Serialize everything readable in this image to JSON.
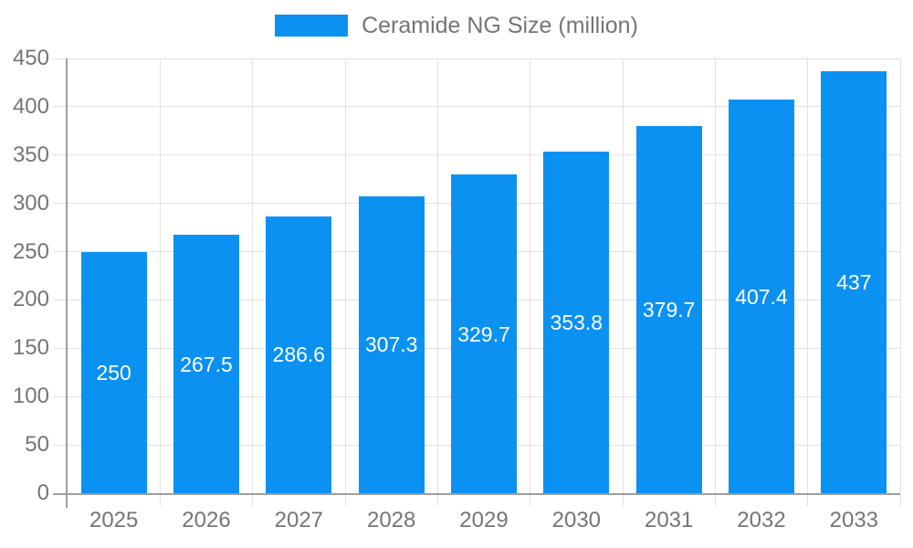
{
  "legend": {
    "label": "Ceramide NG Size (million)"
  },
  "colors": {
    "bar": "#0a91f2",
    "bar_label": "#ffffff",
    "axis_text": "#757575",
    "legend_text": "#757575",
    "gridline": "#e2e2e2",
    "axis_line": "#9e9e9e"
  },
  "chart_data": {
    "type": "bar",
    "title": "Ceramide NG Size (million)",
    "categories": [
      "2025",
      "2026",
      "2027",
      "2028",
      "2029",
      "2030",
      "2031",
      "2032",
      "2033"
    ],
    "values": [
      250,
      267.5,
      286.6,
      307.3,
      329.7,
      353.8,
      379.7,
      407.4,
      437
    ],
    "series": [
      {
        "name": "Ceramide NG Size (million)",
        "values": [
          250,
          267.5,
          286.6,
          307.3,
          329.7,
          353.8,
          379.7,
          407.4,
          437
        ]
      }
    ],
    "xlabel": "",
    "ylabel": "",
    "ylim": [
      0,
      450
    ],
    "ytick_step": 50,
    "yticks": [
      0,
      50,
      100,
      150,
      200,
      250,
      300,
      350,
      400,
      450
    ],
    "grid": true,
    "legend_position": "top",
    "value_label_position": "inside-center"
  }
}
